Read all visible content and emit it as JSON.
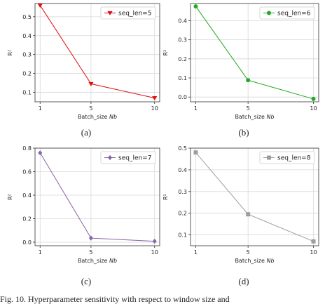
{
  "chart_data": [
    {
      "type": "line",
      "caption": "(a)",
      "x": [
        1,
        5,
        10
      ],
      "series": [
        {
          "name": "seq_len=5",
          "values": [
            0.56,
            0.145,
            0.07
          ],
          "color": "#dd1111",
          "marker": "triangle-down"
        }
      ],
      "xlabel_prefix": "Batch_size ",
      "xlabel_var": "Nb",
      "ylabel": "R²",
      "ylim": [
        0.05,
        0.57
      ],
      "yticks": [
        0.1,
        0.2,
        0.3,
        0.4,
        0.5
      ],
      "ytick_labels": [
        "0.1",
        "0.2",
        "0.3",
        "0.4",
        "0.5"
      ],
      "xtick_labels": [
        "1",
        "5",
        "10"
      ],
      "grid": true,
      "legend": "top-right"
    },
    {
      "type": "line",
      "caption": "(b)",
      "x": [
        1,
        5,
        10
      ],
      "series": [
        {
          "name": "seq_len=6",
          "values": [
            0.475,
            0.088,
            -0.01
          ],
          "color": "#22aa22",
          "marker": "circle"
        }
      ],
      "xlabel_prefix": "Batch_size ",
      "xlabel_var": "Nb",
      "ylabel": "R²",
      "ylim": [
        -0.025,
        0.49
      ],
      "yticks": [
        0.0,
        0.1,
        0.2,
        0.3,
        0.4
      ],
      "ytick_labels": [
        "0.0",
        "0.1",
        "0.2",
        "0.3",
        "0.4"
      ],
      "xtick_labels": [
        "1",
        "5",
        "10"
      ],
      "grid": true,
      "legend": "top-right"
    },
    {
      "type": "line",
      "caption": "(c)",
      "x": [
        1,
        5,
        10
      ],
      "series": [
        {
          "name": "seq_len=7",
          "values": [
            0.76,
            0.035,
            0.008
          ],
          "color": "#8a63a8",
          "marker": "diamond"
        }
      ],
      "xlabel_prefix": "Batch_size ",
      "xlabel_var": "Nb",
      "ylabel": "R²",
      "ylim": [
        -0.03,
        0.8
      ],
      "yticks": [
        0.0,
        0.2,
        0.4,
        0.6,
        0.8
      ],
      "ytick_labels": [
        "0.0",
        "0.2",
        "0.4",
        "0.6",
        "0.8"
      ],
      "xtick_labels": [
        "1",
        "5",
        "10"
      ],
      "grid": true,
      "legend": "top-right"
    },
    {
      "type": "line",
      "caption": "(d)",
      "x": [
        1,
        5,
        10
      ],
      "series": [
        {
          "name": "seq_len=8",
          "values": [
            0.48,
            0.195,
            0.07
          ],
          "color": "#9e9e98",
          "marker": "square"
        }
      ],
      "xlabel_prefix": "Batch_size ",
      "xlabel_var": "Nb",
      "ylabel": "R²",
      "ylim": [
        0.05,
        0.5
      ],
      "yticks": [
        0.1,
        0.2,
        0.3,
        0.4,
        0.5
      ],
      "ytick_labels": [
        "0.1",
        "0.2",
        "0.3",
        "0.4",
        "0.5"
      ],
      "xtick_labels": [
        "1",
        "5",
        "10"
      ],
      "grid": true,
      "legend": "top-right"
    }
  ],
  "figure_caption": "Fig. 10.    Hyperparameter sensitivity with respect to window size and"
}
